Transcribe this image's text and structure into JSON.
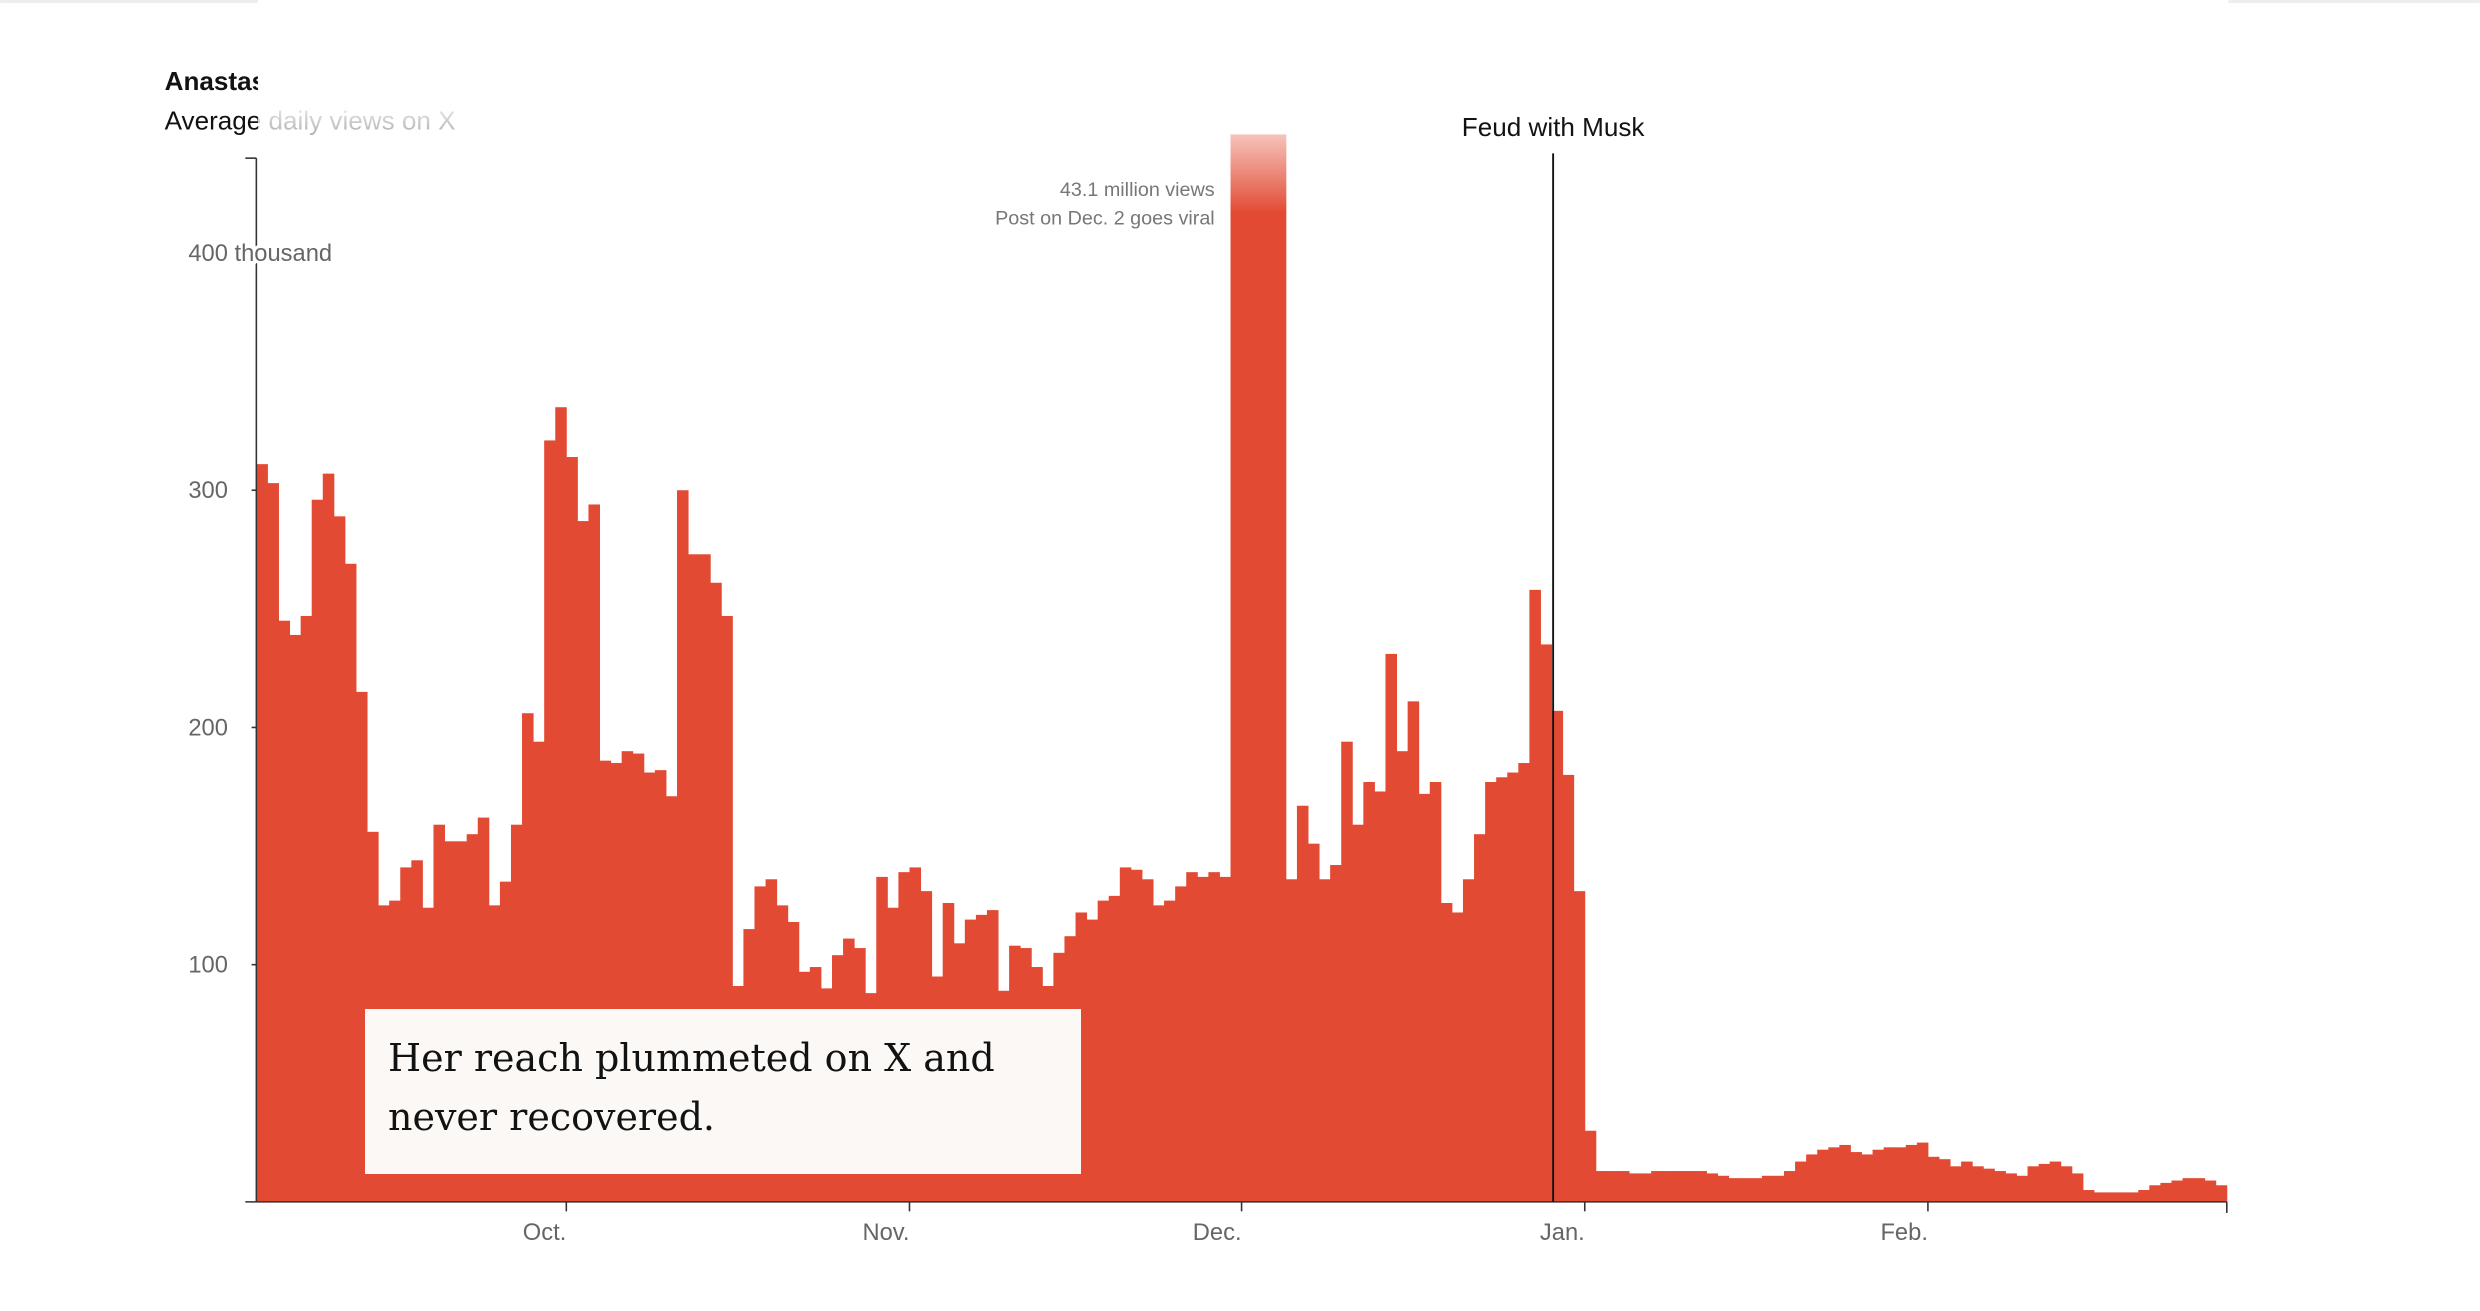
{
  "chart_data": {
    "type": "bar",
    "title": "Anastasia Maria Loupis",
    "subtitle": "Average daily views on X",
    "categories": [
      null,
      null,
      null,
      null,
      null,
      null,
      null,
      null,
      null,
      null,
      null,
      null,
      null,
      null,
      null,
      null,
      null,
      null,
      null,
      null,
      null,
      null,
      null,
      null,
      null,
      null,
      null,
      null,
      "Oct.",
      null,
      null,
      null,
      null,
      null,
      null,
      null,
      null,
      null,
      null,
      null,
      null,
      null,
      null,
      null,
      null,
      null,
      null,
      null,
      null,
      null,
      null,
      null,
      null,
      null,
      null,
      null,
      null,
      null,
      null,
      "Nov.",
      null,
      null,
      null,
      null,
      null,
      null,
      null,
      null,
      null,
      null,
      null,
      null,
      null,
      null,
      null,
      null,
      null,
      null,
      null,
      null,
      null,
      null,
      null,
      null,
      null,
      null,
      null,
      null,
      null,
      "Dec.",
      null,
      null,
      null,
      null,
      null,
      null,
      null,
      null,
      null,
      null,
      null,
      null,
      null,
      null,
      null,
      null,
      null,
      null,
      null,
      null,
      null,
      null,
      null,
      null,
      null,
      null,
      null,
      null,
      null,
      null,
      "Jan.",
      null,
      null,
      null,
      null,
      null,
      null,
      null,
      null,
      null,
      null,
      null,
      null,
      null,
      null,
      null,
      null,
      null,
      null,
      null,
      null,
      null,
      null,
      null,
      null,
      null,
      null,
      null,
      null,
      null,
      null,
      "Feb.",
      null,
      null,
      null,
      null,
      null,
      null,
      null,
      null,
      null,
      null,
      null,
      null,
      null,
      null,
      null,
      null,
      null,
      null,
      null,
      null,
      null,
      null,
      null,
      null,
      null,
      null
    ],
    "values": [
      311,
      303,
      245,
      239,
      247,
      296,
      307,
      289,
      269,
      215,
      156,
      125,
      127,
      141,
      144,
      124,
      159,
      152,
      152,
      155,
      162,
      125,
      135,
      159,
      206,
      194,
      321,
      335,
      314,
      287,
      294,
      186,
      185,
      190,
      189,
      181,
      182,
      171,
      300,
      273,
      273,
      261,
      247,
      91,
      115,
      133,
      136,
      125,
      118,
      97,
      99,
      90,
      104,
      111,
      107,
      88,
      137,
      124,
      139,
      141,
      131,
      95,
      126,
      109,
      119,
      121,
      123,
      89,
      108,
      107,
      99,
      91,
      105,
      112,
      122,
      119,
      127,
      129,
      141,
      140,
      136,
      125,
      127,
      133,
      139,
      137,
      139,
      137,
      450,
      450,
      450,
      450,
      450,
      136,
      167,
      151,
      136,
      142,
      194,
      159,
      177,
      173,
      231,
      190,
      211,
      172,
      177,
      126,
      122,
      136,
      155,
      177,
      179,
      181,
      185,
      258,
      235,
      207,
      180,
      131,
      30,
      13,
      13,
      13,
      12,
      12,
      13,
      13,
      13,
      13,
      13,
      12,
      11,
      10,
      10,
      10,
      11,
      11,
      13,
      17,
      20,
      22,
      23,
      24,
      21,
      20,
      22,
      23,
      23,
      24,
      25,
      19,
      18,
      15,
      17,
      15,
      14,
      13,
      12,
      11,
      15,
      16,
      17,
      15,
      12,
      5,
      4,
      4,
      4,
      4,
      5,
      7,
      8,
      9,
      10,
      10,
      9,
      7
    ],
    "color": "#e24a33",
    "ylim": [
      0,
      440
    ],
    "yticks": [
      100,
      200,
      300,
      {
        "value": 400,
        "label": "400 thousand"
      }
    ],
    "annotations": [
      {
        "lines": [
          "43.1 million views",
          "Post on Dec. 2 goes viral"
        ],
        "index": 88
      },
      {
        "lines": [
          "Feud with Musk"
        ],
        "index": 117
      }
    ],
    "note": "Her reach plummeted on X and never recovered."
  }
}
